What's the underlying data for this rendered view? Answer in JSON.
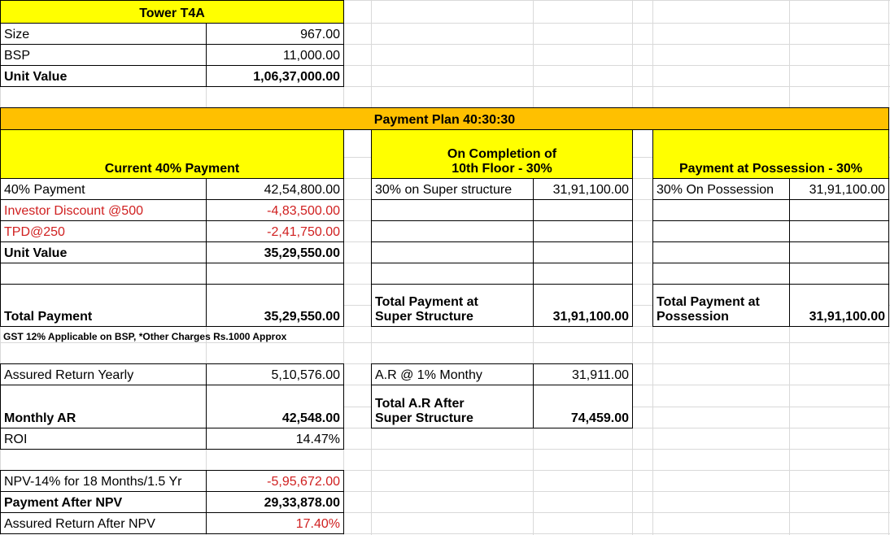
{
  "tower": {
    "title": "Tower T4A",
    "rows": [
      [
        "Size",
        "967.00"
      ],
      [
        "BSP",
        "11,000.00"
      ],
      [
        "Unit Value",
        "1,06,37,000.00"
      ]
    ]
  },
  "payment_plan": {
    "title": "Payment Plan 40:30:30",
    "current": {
      "heading": "Current 40% Payment",
      "rows": [
        [
          "40% Payment",
          "42,54,800.00"
        ],
        [
          "Investor Discount @500",
          "-4,83,500.00"
        ],
        [
          "TPD@250",
          "-2,41,750.00"
        ],
        [
          "Unit Value",
          "35,29,550.00"
        ]
      ],
      "total": [
        "Total Payment",
        "35,29,550.00"
      ]
    },
    "completion": {
      "heading": [
        "On Completion of",
        "10th Floor - 30%"
      ],
      "row": [
        "30% on Super structure",
        "31,91,100.00"
      ],
      "total": [
        "Total Payment at",
        "Super Structure",
        "31,91,100.00"
      ]
    },
    "possession": {
      "heading": "Payment at Possession - 30%",
      "row": [
        "30% On Possession",
        "31,91,100.00"
      ],
      "total": [
        "Total Payment at",
        "Possession",
        "31,91,100.00"
      ]
    }
  },
  "note": "GST  12%  Applicable on BSP, *Other Charges Rs.1000 Approx",
  "returns": {
    "rows": [
      [
        "Assured  Return Yearly",
        "5,10,576.00"
      ],
      [
        "Monthly AR",
        "42,548.00"
      ],
      [
        "ROI",
        "14.47%"
      ]
    ],
    "ar": {
      "row": [
        "A.R @ 1% Monthy",
        "31,911.00"
      ],
      "total": [
        "Total A.R After",
        "Super Structure",
        "74,459.00"
      ]
    }
  },
  "npv": {
    "rows": [
      [
        "NPV-14% for 18 Months/1.5 Yr",
        "-5,95,672.00"
      ],
      [
        "Payment After NPV",
        "29,33,878.00"
      ],
      [
        "Assured Return After NPV",
        "17.40%"
      ]
    ]
  }
}
